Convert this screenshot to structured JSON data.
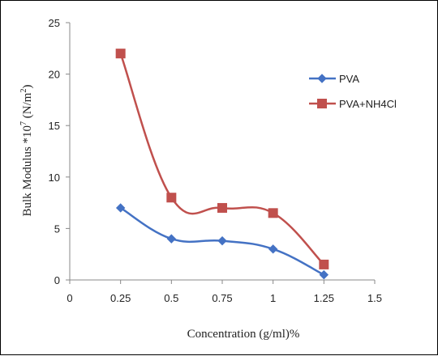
{
  "chart_data": {
    "type": "line",
    "xlabel": "Concentration (g/ml)%",
    "ylabel_main": "Bulk Modulus  *10",
    "ylabel_exp": "7",
    "ylabel_unit": " (N/m",
    "ylabel_unit_exp": "2",
    "ylabel_close": ")",
    "xlim": [
      0,
      1.5
    ],
    "ylim": [
      0,
      25
    ],
    "x_ticks": [
      "0",
      "0.25",
      "0.5",
      "0.75",
      "1",
      "1.25",
      "1.5"
    ],
    "x_tick_values": [
      0,
      0.25,
      0.5,
      0.75,
      1,
      1.25,
      1.5
    ],
    "y_ticks": [
      "0",
      "5",
      "10",
      "15",
      "20",
      "25"
    ],
    "y_tick_values": [
      0,
      5,
      10,
      15,
      20,
      25
    ],
    "grid": false,
    "legend_position": "right",
    "smooth": true,
    "series": [
      {
        "name": "PVA",
        "color": "#4472C4",
        "marker": "diamond",
        "x": [
          0.25,
          0.5,
          0.75,
          1,
          1.25
        ],
        "y": [
          7,
          4,
          3.8,
          3,
          0.5
        ]
      },
      {
        "name": "PVA+NH4Cl",
        "color": "#C0504D",
        "marker": "square",
        "x": [
          0.25,
          0.5,
          0.75,
          1,
          1.25
        ],
        "y": [
          22,
          8,
          7,
          6.5,
          1.5
        ]
      }
    ]
  }
}
